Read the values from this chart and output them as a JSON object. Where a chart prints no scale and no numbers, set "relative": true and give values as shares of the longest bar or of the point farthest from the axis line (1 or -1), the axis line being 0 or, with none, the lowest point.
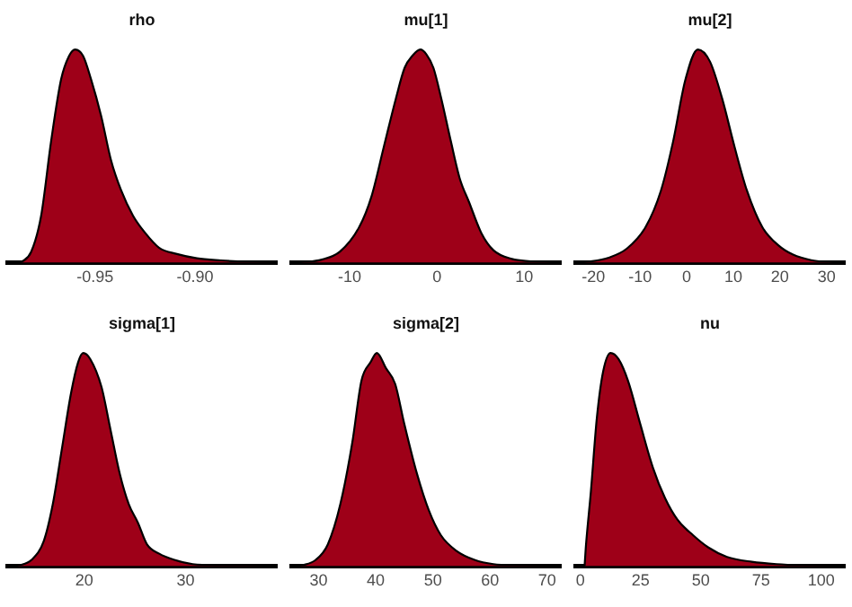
{
  "chart_data": [
    {
      "type": "area",
      "title": "rho",
      "relative": true,
      "color": "#9e0018",
      "xlim": [
        -0.994,
        -0.859
      ],
      "xticks": [
        {
          "value": -0.95,
          "label": "-0.95"
        },
        {
          "value": -0.9,
          "label": "-0.90"
        }
      ],
      "x": [
        -0.987,
        -0.982,
        -0.977,
        -0.972,
        -0.967,
        -0.963,
        -0.96,
        -0.956,
        -0.952,
        -0.947,
        -0.942,
        -0.937,
        -0.931,
        -0.925,
        -0.918,
        -0.909,
        -0.899,
        -0.887,
        -0.874,
        -0.86
      ],
      "values": [
        0,
        0.05,
        0.22,
        0.57,
        0.86,
        0.97,
        1,
        0.97,
        0.86,
        0.69,
        0.48,
        0.34,
        0.22,
        0.14,
        0.07,
        0.04,
        0.02,
        0.01,
        0.003,
        0
      ]
    },
    {
      "type": "area",
      "title": "mu[1]",
      "relative": true,
      "color": "#9e0018",
      "xlim": [
        -16.7,
        14.2
      ],
      "xticks": [
        -10,
        0,
        10
      ],
      "x": [
        -15.6,
        -13.2,
        -11.1,
        -8.9,
        -7.5,
        -6.1,
        -4.7,
        -3.7,
        -2.8,
        -1.9,
        -1.2,
        -0.4,
        0.5,
        1.6,
        2.6,
        3.7,
        5.1,
        6.5,
        8.6,
        10.7,
        13.2
      ],
      "values": [
        0,
        0.014,
        0.052,
        0.167,
        0.31,
        0.54,
        0.77,
        0.914,
        0.971,
        1,
        0.977,
        0.914,
        0.77,
        0.569,
        0.397,
        0.282,
        0.138,
        0.057,
        0.017,
        0.006,
        0
      ]
    },
    {
      "type": "area",
      "title": "mu[2]",
      "relative": true,
      "color": "#9e0018",
      "xlim": [
        -23.9,
        33.9
      ],
      "xticks": [
        -20,
        -10,
        0,
        10,
        20,
        30
      ],
      "x": [
        -22,
        -16.7,
        -12.8,
        -8.8,
        -5.5,
        -2.9,
        -0.3,
        2.4,
        5,
        7.6,
        10.3,
        12.9,
        16.2,
        19.7,
        22.8,
        26.7,
        31.3
      ],
      "values": [
        0,
        0.023,
        0.066,
        0.167,
        0.339,
        0.569,
        0.856,
        1,
        0.943,
        0.77,
        0.54,
        0.339,
        0.167,
        0.08,
        0.037,
        0.011,
        0
      ]
    },
    {
      "type": "area",
      "title": "sigma[1]",
      "relative": true,
      "color": "#9e0018",
      "xlim": [
        12.4,
        39
      ],
      "xticks": [
        20,
        30
      ],
      "x": [
        13.4,
        14.8,
        16,
        16.9,
        17.8,
        18.7,
        19.4,
        19.9,
        20.6,
        21.7,
        22.6,
        23.5,
        24.4,
        25.3,
        26.2,
        27.4,
        28.9,
        30.7,
        33.7,
        37.8
      ],
      "values": [
        0,
        0.029,
        0.116,
        0.29,
        0.551,
        0.812,
        0.957,
        1,
        0.971,
        0.841,
        0.638,
        0.435,
        0.29,
        0.203,
        0.101,
        0.058,
        0.029,
        0.009,
        0.003,
        0
      ]
    },
    {
      "type": "area",
      "title": "sigma[2]",
      "relative": true,
      "color": "#9e0018",
      "xlim": [
        25.2,
        72.4
      ],
      "xticks": [
        30,
        40,
        50,
        60,
        70
      ],
      "x": [
        26.8,
        29.5,
        31.6,
        33.8,
        35.9,
        37.5,
        39.1,
        40.2,
        41.8,
        43.4,
        45,
        47.2,
        49.3,
        51.4,
        54.1,
        57.3,
        60.6,
        64.9,
        70.4
      ],
      "values": [
        0,
        0.029,
        0.101,
        0.29,
        0.58,
        0.87,
        0.957,
        1,
        0.928,
        0.855,
        0.667,
        0.435,
        0.261,
        0.145,
        0.072,
        0.029,
        0.009,
        0.003,
        0
      ]
    },
    {
      "type": "area",
      "title": "nu",
      "relative": true,
      "color": "#9e0018",
      "xlim": [
        -2.1,
        109.8
      ],
      "xticks": [
        0,
        25,
        50,
        75,
        100
      ],
      "x": [
        1.8,
        2.3,
        4.4,
        6.9,
        9.5,
        12.6,
        15.9,
        19.8,
        24.9,
        30.1,
        35.2,
        40.4,
        46.8,
        53.2,
        60.9,
        71.2,
        81.5,
        94.3,
        105.9
      ],
      "values": [
        0,
        0.087,
        0.348,
        0.696,
        0.913,
        1,
        0.971,
        0.87,
        0.667,
        0.464,
        0.319,
        0.217,
        0.145,
        0.087,
        0.043,
        0.02,
        0.009,
        0.003,
        0
      ]
    }
  ]
}
